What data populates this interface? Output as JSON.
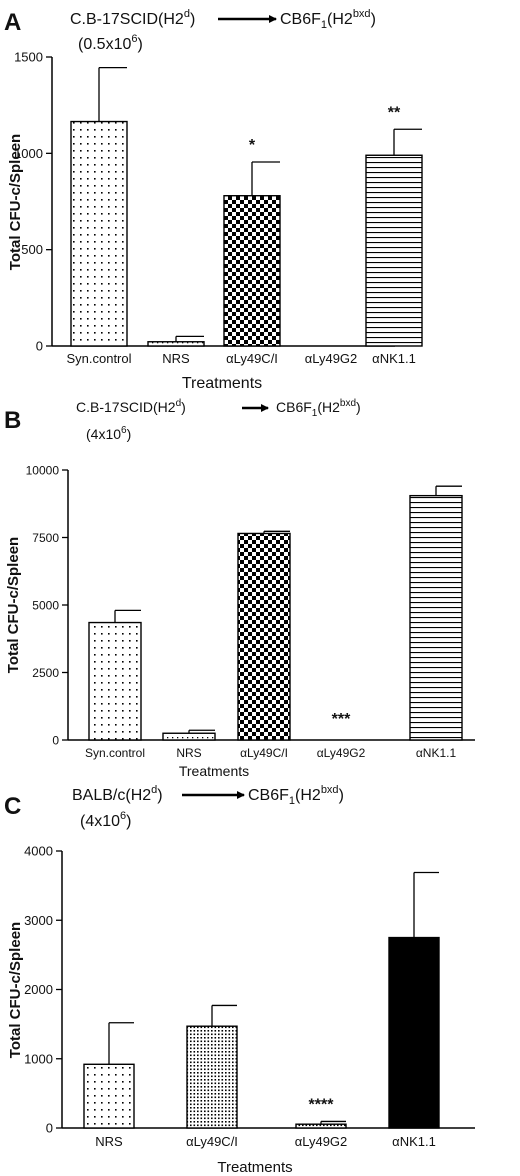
{
  "panels": [
    {
      "letter": "A",
      "header": {
        "donor": "C.B-17SCID(H2",
        "donor_sup": "d",
        "donor_close": ")",
        "recipient": "CB6F",
        "recipient_sub": "1",
        "recipient_mid": "(H2",
        "recipient_sup": "bxd",
        "recipient_close": ")",
        "dose": "(0.5x10",
        "dose_sup": "6",
        "dose_close": ")"
      }
    },
    {
      "letter": "B",
      "header": {
        "donor": "C.B-17SCID(H2",
        "donor_sup": "d",
        "donor_close": ")",
        "recipient": "CB6F",
        "recipient_sub": "1",
        "recipient_mid": "(H2",
        "recipient_sup": "bxd",
        "recipient_close": ")",
        "dose": "(4x10",
        "dose_sup": "6",
        "dose_close": ")"
      }
    },
    {
      "letter": "C",
      "header": {
        "donor": "BALB/c(H2",
        "donor_sup": "d",
        "donor_close": ")",
        "recipient": "CB6F",
        "recipient_sub": "1",
        "recipient_mid": "(H2",
        "recipient_sup": "bxd",
        "recipient_close": ")",
        "dose": "(4x10",
        "dose_sup": "6",
        "dose_close": ")"
      }
    }
  ],
  "chart_data": [
    {
      "type": "bar",
      "ylabel": "Total CFU-c/Spleen",
      "xlabel": "Treatments",
      "ylim": [
        0,
        1500
      ],
      "yticks": [
        0,
        500,
        1000,
        1500
      ],
      "categories": [
        "Syn.control",
        "NRS",
        "αLy49C/I",
        "αLy49G2",
        "αNK1.1"
      ],
      "values": [
        1165,
        22,
        780,
        0,
        990
      ],
      "errors": [
        280,
        28,
        175,
        0,
        135
      ],
      "annotations": [
        "",
        "",
        "*",
        "",
        "**"
      ],
      "patterns": [
        "dots",
        "dots-fine",
        "checker",
        "none",
        "hlines"
      ]
    },
    {
      "type": "bar",
      "ylabel": "Total CFU-c/Spleen",
      "xlabel": "Treatments",
      "ylim": [
        0,
        10000
      ],
      "yticks": [
        0,
        2500,
        5000,
        7500,
        10000
      ],
      "categories": [
        "Syn.control",
        "NRS",
        "αLy49C/I",
        "αLy49G2",
        "αNK1.1"
      ],
      "values": [
        4350,
        250,
        7650,
        0,
        9050
      ],
      "errors": [
        450,
        110,
        80,
        0,
        350
      ],
      "annotations": [
        "",
        "",
        "",
        "***",
        ""
      ],
      "patterns": [
        "dots",
        "dots-fine",
        "checker",
        "none",
        "hlines"
      ]
    },
    {
      "type": "bar",
      "ylabel": "Total CFU-c/Spleen",
      "xlabel": "Treatments",
      "ylim": [
        0,
        4000
      ],
      "yticks": [
        0,
        1000,
        2000,
        3000,
        4000
      ],
      "categories": [
        "NRS",
        "αLy49C/I",
        "αLy49G2",
        "αNK1.1"
      ],
      "values": [
        920,
        1470,
        55,
        2750
      ],
      "errors": [
        600,
        300,
        40,
        940
      ],
      "annotations": [
        "",
        "",
        "****",
        ""
      ],
      "patterns": [
        "dots",
        "dots-dense",
        "dots-dense",
        "solid"
      ]
    }
  ]
}
